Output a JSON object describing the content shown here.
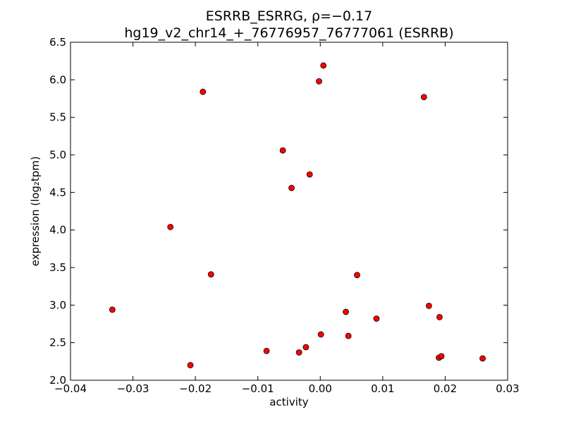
{
  "chart_data": {
    "type": "scatter",
    "title": "ESRRB_ESRRG, ρ=−0.17",
    "subtitle": "hg19_v2_chr14_+_76776957_76777061 (ESRRB)",
    "xlabel": "activity",
    "ylabel": "expression (log₂tpm)",
    "xlim": [
      -0.04,
      0.03
    ],
    "ylim": [
      2.0,
      6.5
    ],
    "x_ticks": [
      -0.04,
      -0.03,
      -0.02,
      -0.01,
      0.0,
      0.01,
      0.02,
      0.03
    ],
    "x_tick_labels": [
      "−0.04",
      "−0.03",
      "−0.02",
      "−0.01",
      "0.00",
      "0.01",
      "0.02",
      "0.03"
    ],
    "y_ticks": [
      2.0,
      2.5,
      3.0,
      3.5,
      4.0,
      4.5,
      5.0,
      5.5,
      6.0,
      6.5
    ],
    "y_tick_labels": [
      "2.0",
      "2.5",
      "3.0",
      "3.5",
      "4.0",
      "4.5",
      "5.0",
      "5.5",
      "6.0",
      "6.5"
    ],
    "grid": false,
    "marker_color": "#ff0000",
    "marker_edge_color": "#000000",
    "points": [
      {
        "x": -0.0333,
        "y": 2.94
      },
      {
        "x": -0.024,
        "y": 4.04
      },
      {
        "x": -0.0208,
        "y": 2.2
      },
      {
        "x": -0.0188,
        "y": 5.84
      },
      {
        "x": -0.0175,
        "y": 3.41
      },
      {
        "x": -0.0086,
        "y": 2.39
      },
      {
        "x": -0.006,
        "y": 5.06
      },
      {
        "x": -0.0046,
        "y": 4.56
      },
      {
        "x": -0.0034,
        "y": 2.37
      },
      {
        "x": -0.0023,
        "y": 2.44
      },
      {
        "x": -0.0017,
        "y": 4.74
      },
      {
        "x": -0.0002,
        "y": 5.98
      },
      {
        "x": 0.0001,
        "y": 2.61
      },
      {
        "x": 0.0005,
        "y": 6.19
      },
      {
        "x": 0.0041,
        "y": 2.91
      },
      {
        "x": 0.0045,
        "y": 2.59
      },
      {
        "x": 0.0059,
        "y": 3.4
      },
      {
        "x": 0.009,
        "y": 2.82
      },
      {
        "x": 0.0166,
        "y": 5.77
      },
      {
        "x": 0.0174,
        "y": 2.99
      },
      {
        "x": 0.019,
        "y": 2.3
      },
      {
        "x": 0.0191,
        "y": 2.84
      },
      {
        "x": 0.0194,
        "y": 2.32
      },
      {
        "x": 0.026,
        "y": 2.29
      }
    ]
  }
}
